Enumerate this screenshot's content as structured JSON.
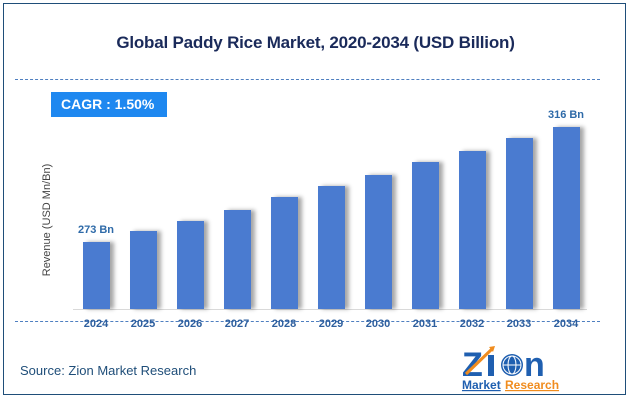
{
  "title": "Global Paddy Rice Market, 2020-2034 (USD Billion)",
  "cagr_label": "CAGR : 1.50%",
  "source": "Source: Zion Market Research",
  "logo": {
    "word": "Zion",
    "sub1": "Market",
    "sub2": "Research"
  },
  "colors": {
    "bar": "#4a7bd0",
    "cagr_bg": "#1e88f0",
    "title": "#1a2a5a",
    "axis_label": "#2e5f9e",
    "logo_blue": "#1f5fb0",
    "logo_orange": "#f08c1e"
  },
  "chart_data": {
    "type": "bar",
    "title": "Global Paddy Rice Market, 2020-2034 (USD Billion)",
    "xlabel": "",
    "ylabel": "Revenue (USD Mn/Bn)",
    "categories": [
      "2024",
      "2025",
      "2026",
      "2027",
      "2028",
      "2029",
      "2030",
      "2031",
      "2032",
      "2033",
      "2034"
    ],
    "values": [
      273,
      277,
      281,
      285,
      290,
      294,
      298,
      303,
      307,
      312,
      316
    ],
    "data_labels": {
      "2024": "273 Bn",
      "2034": "316 Bn"
    },
    "annotations": [
      "CAGR : 1.50%"
    ],
    "grid": false,
    "legend": "none"
  }
}
